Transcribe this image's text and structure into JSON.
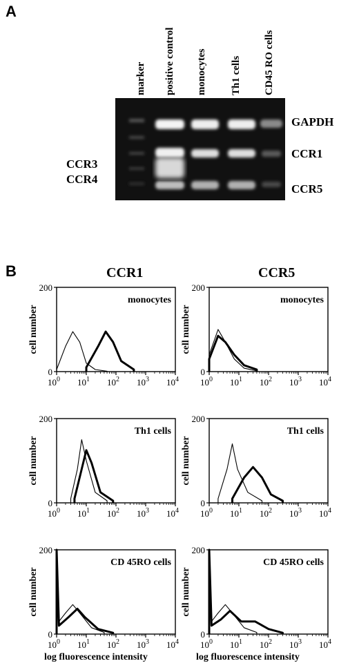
{
  "panel_a": {
    "letter": "A",
    "lanes": [
      "marker",
      "positive control",
      "monocytes",
      "Th1 cells",
      "CD45 RO cells"
    ],
    "bands_right": [
      "GAPDH",
      "CCR1",
      "CCR5"
    ],
    "bands_left": [
      "CCR3",
      "CCR4"
    ]
  },
  "panel_b": {
    "letter": "B",
    "columns": [
      "CCR1",
      "CCR5"
    ],
    "row_labels": [
      "monocytes",
      "Th1 cells",
      "CD 45RO cells"
    ],
    "y_axis_label": "cell number",
    "x_axis_label": "log fluorescence intensity",
    "y_ticks": [
      "0",
      "200"
    ]
  },
  "chart_data": [
    {
      "type": "line",
      "column": "CCR1",
      "sample": "monocytes",
      "xscale": "log",
      "xlim": [
        1,
        10000
      ],
      "ylim": [
        0,
        200
      ],
      "series": [
        {
          "style": "thin",
          "values": [
            [
              1,
              5
            ],
            [
              2,
              60
            ],
            [
              3.5,
              95
            ],
            [
              6,
              70
            ],
            [
              10,
              20
            ],
            [
              20,
              5
            ],
            [
              50,
              1
            ]
          ]
        },
        {
          "style": "thick",
          "values": [
            [
              10,
              10
            ],
            [
              25,
              60
            ],
            [
              45,
              95
            ],
            [
              80,
              70
            ],
            [
              150,
              25
            ],
            [
              400,
              5
            ]
          ]
        }
      ]
    },
    {
      "type": "line",
      "column": "CCR5",
      "sample": "monocytes",
      "xscale": "log",
      "xlim": [
        1,
        10000
      ],
      "ylim": [
        0,
        200
      ],
      "series": [
        {
          "style": "thin",
          "values": [
            [
              1,
              40
            ],
            [
              2,
              100
            ],
            [
              3.5,
              70
            ],
            [
              7,
              30
            ],
            [
              15,
              8
            ],
            [
              40,
              2
            ]
          ]
        },
        {
          "style": "thick",
          "values": [
            [
              1,
              30
            ],
            [
              2,
              85
            ],
            [
              3.5,
              70
            ],
            [
              7,
              40
            ],
            [
              15,
              15
            ],
            [
              40,
              5
            ]
          ]
        }
      ]
    },
    {
      "type": "line",
      "column": "CCR1",
      "sample": "Th1 cells",
      "xscale": "log",
      "xlim": [
        1,
        10000
      ],
      "ylim": [
        0,
        200
      ],
      "series": [
        {
          "style": "thin",
          "values": [
            [
              3,
              10
            ],
            [
              5,
              80
            ],
            [
              7,
              150
            ],
            [
              10,
              100
            ],
            [
              20,
              25
            ],
            [
              50,
              5
            ]
          ]
        },
        {
          "style": "thick",
          "values": [
            [
              4,
              10
            ],
            [
              7,
              80
            ],
            [
              10,
              125
            ],
            [
              15,
              95
            ],
            [
              30,
              25
            ],
            [
              80,
              5
            ]
          ]
        }
      ]
    },
    {
      "type": "line",
      "column": "CCR5",
      "sample": "Th1 cells",
      "xscale": "log",
      "xlim": [
        1,
        10000
      ],
      "ylim": [
        0,
        200
      ],
      "series": [
        {
          "style": "thin",
          "values": [
            [
              2,
              10
            ],
            [
              4,
              80
            ],
            [
              6,
              140
            ],
            [
              9,
              80
            ],
            [
              20,
              25
            ],
            [
              60,
              5
            ]
          ]
        },
        {
          "style": "thick",
          "values": [
            [
              6,
              10
            ],
            [
              15,
              60
            ],
            [
              30,
              85
            ],
            [
              60,
              60
            ],
            [
              120,
              20
            ],
            [
              300,
              5
            ]
          ]
        }
      ]
    },
    {
      "type": "line",
      "column": "CCR1",
      "sample": "CD 45RO cells",
      "xscale": "log",
      "xlim": [
        1,
        10000
      ],
      "ylim": [
        0,
        200
      ],
      "series": [
        {
          "style": "thin",
          "values": [
            [
              1,
              200
            ],
            [
              1.2,
              30
            ],
            [
              2,
              50
            ],
            [
              3.5,
              70
            ],
            [
              6,
              50
            ],
            [
              15,
              15
            ],
            [
              40,
              4
            ]
          ]
        },
        {
          "style": "thick",
          "values": [
            [
              1,
              200
            ],
            [
              1.2,
              20
            ],
            [
              2.5,
              40
            ],
            [
              5,
              60
            ],
            [
              9,
              40
            ],
            [
              25,
              12
            ],
            [
              80,
              3
            ]
          ]
        }
      ]
    },
    {
      "type": "line",
      "column": "CCR5",
      "sample": "CD 45RO cells",
      "xscale": "log",
      "xlim": [
        1,
        10000
      ],
      "ylim": [
        0,
        200
      ],
      "series": [
        {
          "style": "thin",
          "values": [
            [
              1,
              200
            ],
            [
              1.2,
              30
            ],
            [
              2,
              50
            ],
            [
              3.5,
              70
            ],
            [
              6,
              50
            ],
            [
              15,
              15
            ],
            [
              40,
              4
            ]
          ]
        },
        {
          "style": "thick",
          "values": [
            [
              1,
              200
            ],
            [
              1.2,
              20
            ],
            [
              2.5,
              35
            ],
            [
              5,
              55
            ],
            [
              12,
              30
            ],
            [
              35,
              30
            ],
            [
              100,
              12
            ],
            [
              300,
              3
            ]
          ]
        }
      ]
    }
  ]
}
